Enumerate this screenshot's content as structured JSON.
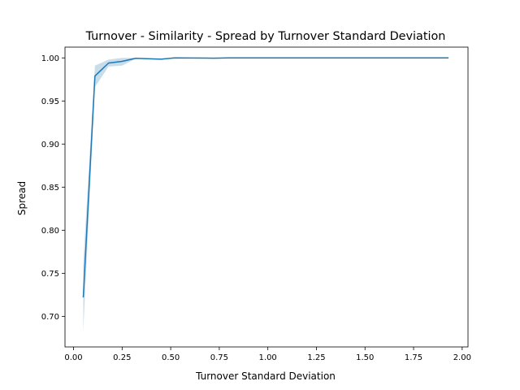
{
  "chart_data": {
    "type": "line",
    "title": "Turnover - Similarity - Spread by Turnover Standard Deviation",
    "xlabel": "Turnover Standard Deviation",
    "ylabel": "Spread",
    "xlim": [
      -0.044,
      2.03
    ],
    "ylim": [
      0.6645,
      1.0125
    ],
    "x_ticks": [
      0.0,
      0.25,
      0.5,
      0.75,
      1.0,
      1.25,
      1.5,
      1.75,
      2.0
    ],
    "x_tick_labels": [
      "0.00",
      "0.25",
      "0.50",
      "0.75",
      "1.00",
      "1.25",
      "1.50",
      "1.75",
      "2.00"
    ],
    "y_ticks": [
      0.7,
      0.75,
      0.8,
      0.85,
      0.9,
      0.95,
      1.0
    ],
    "y_tick_labels": [
      "0.70",
      "0.75",
      "0.80",
      "0.85",
      "0.90",
      "0.95",
      "1.00"
    ],
    "grid": false,
    "series": [
      {
        "color": "#1f77b4",
        "band_color": "#1f77b4",
        "band_opacity": 0.25,
        "x": [
          0.05,
          0.11,
          0.18,
          0.25,
          0.32,
          0.45,
          0.52,
          0.72,
          0.8,
          1.0,
          1.2,
          1.5,
          1.75,
          1.93
        ],
        "y": [
          0.722,
          0.979,
          0.994,
          0.996,
          0.9995,
          0.9985,
          1.0,
          0.9997,
          1.0,
          1.0,
          1.0,
          1.0,
          1.0,
          1.0
        ],
        "lower": [
          0.683,
          0.966,
          0.99,
          0.991,
          0.999,
          0.998,
          0.9998,
          0.9995,
          0.9999,
          1.0,
          1.0,
          1.0,
          1.0,
          1.0
        ],
        "upper": [
          0.762,
          0.991,
          0.998,
          1.0,
          1.0,
          0.9995,
          1.0,
          1.0,
          1.0,
          1.0,
          1.0,
          1.0,
          1.0,
          1.0
        ]
      }
    ]
  }
}
